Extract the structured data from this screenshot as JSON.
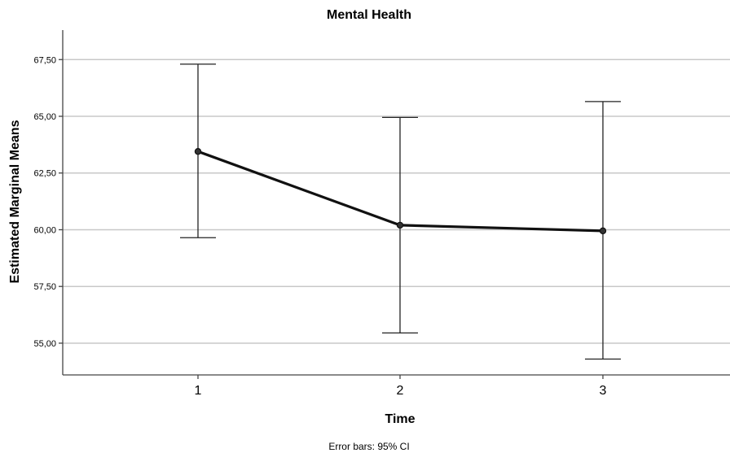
{
  "chart_data": {
    "type": "line",
    "title": "Mental Health",
    "xlabel": "Time",
    "ylabel": "Estimated Marginal Means",
    "footnote": "Error bars: 95% CI",
    "categories": [
      "1",
      "2",
      "3"
    ],
    "series": [
      {
        "values": [
          63.45,
          60.2,
          59.95
        ],
        "ci_lower": [
          59.65,
          55.45,
          54.3
        ],
        "ci_upper": [
          67.3,
          64.95,
          65.65
        ]
      }
    ],
    "y_ticks": [
      "55,00",
      "57,50",
      "60,00",
      "62,50",
      "65,00",
      "67,50"
    ],
    "y_tick_values": [
      55,
      57.5,
      60,
      62.5,
      65,
      67.5
    ],
    "ylim": [
      53.6,
      68.8
    ],
    "grid": true,
    "colors": {
      "line": "#111111",
      "grid": "#c8c8c8",
      "errorbar": "#222222"
    }
  }
}
